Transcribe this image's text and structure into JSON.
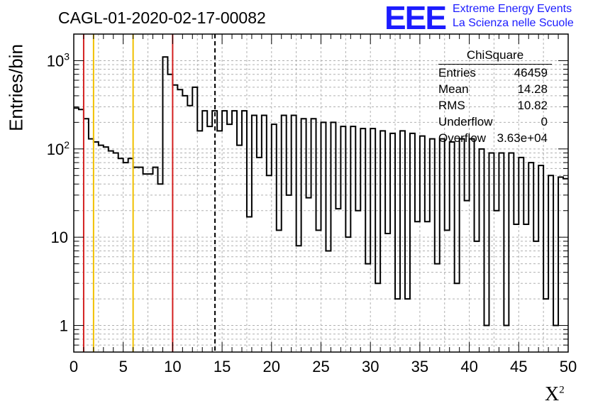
{
  "title": "CAGL-01-2020-02-17-00082",
  "logo": {
    "mark": "EEE",
    "line1": "Extreme Energy Events",
    "line2": "La Scienza nelle Scuole",
    "color": "#1c1cff"
  },
  "stats": {
    "title": "ChiSquare",
    "rows": [
      {
        "k": "Entries",
        "v": "46459"
      },
      {
        "k": "Mean",
        "v": "14.28"
      },
      {
        "k": "RMS",
        "v": "10.82"
      },
      {
        "k": "Underflow",
        "v": "0"
      },
      {
        "k": "Overflow",
        "v": "3.63e+04"
      }
    ]
  },
  "chart_data": {
    "type": "histogram",
    "xlabel": "X",
    "xlabel_sup": "2",
    "ylabel": "Entries/bin",
    "xlim": [
      0,
      50
    ],
    "ylim": [
      0.5,
      2000
    ],
    "yscale": "log",
    "grid": true,
    "bin_width": 0.5,
    "x_ticks": [
      0,
      5,
      10,
      15,
      20,
      25,
      30,
      35,
      40,
      45,
      50
    ],
    "y_ticks": [
      {
        "value": 1,
        "label": "1"
      },
      {
        "value": 10,
        "label": "10"
      },
      {
        "value": 100,
        "label": "10",
        "exp": "2"
      },
      {
        "value": 1000,
        "label": "10",
        "exp": "3"
      }
    ],
    "values": [
      290,
      280,
      220,
      130,
      120,
      110,
      105,
      95,
      90,
      78,
      70,
      78,
      62,
      62,
      52,
      52,
      62,
      40,
      1100,
      700,
      530,
      470,
      400,
      310,
      500,
      160,
      270,
      180,
      270,
      160,
      270,
      190,
      270,
      110,
      270,
      17,
      240,
      80,
      240,
      50,
      190,
      12,
      240,
      30,
      240,
      8,
      220,
      28,
      220,
      12,
      200,
      7,
      200,
      21,
      180,
      10,
      180,
      20,
      170,
      5,
      170,
      3,
      160,
      11,
      150,
      2,
      160,
      2,
      150,
      15,
      140,
      15,
      130,
      5,
      130,
      12,
      120,
      3,
      130,
      26,
      130,
      9,
      100,
      1,
      90,
      20,
      90,
      1,
      90,
      14,
      80,
      14,
      70,
      9,
      65,
      2,
      50,
      1,
      48,
      46
    ],
    "vertical_lines": [
      {
        "x": 1,
        "color": "#d42020",
        "style": "solid"
      },
      {
        "x": 2,
        "color": "#f0c000",
        "style": "solid"
      },
      {
        "x": 6,
        "color": "#f0c000",
        "style": "solid"
      },
      {
        "x": 10,
        "color": "#d42020",
        "style": "solid"
      },
      {
        "x": 14.28,
        "color": "#000000",
        "style": "dashed"
      }
    ]
  }
}
